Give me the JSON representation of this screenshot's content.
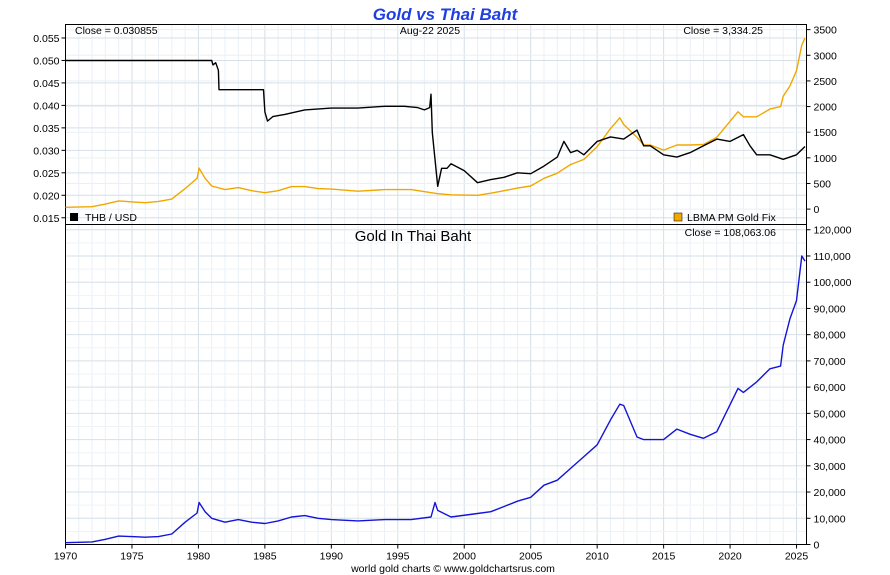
{
  "page": {
    "title": "Gold vs Thai Baht",
    "footer": "world gold charts © www.goldchartsrus.com"
  },
  "chart_data": [
    {
      "type": "line",
      "panel": "top",
      "title": "Gold vs Thai Baht",
      "date_label": "Aug-22  2025",
      "left_close": "Close = 0.030855",
      "right_close": "Close = 3,334.25",
      "x_ticks": [
        "1970",
        "1975",
        "1980",
        "1985",
        "1990",
        "1995",
        "2000",
        "2005",
        "2010",
        "2015",
        "2020",
        "2025"
      ],
      "xlim": [
        1970,
        2025.75
      ],
      "y_left": {
        "ylim": [
          0.0135,
          0.058
        ],
        "ticks": [
          "0.015",
          "0.020",
          "0.025",
          "0.030",
          "0.035",
          "0.040",
          "0.045",
          "0.050",
          "0.055"
        ]
      },
      "y_right": {
        "ylim": [
          -300,
          3600
        ],
        "ticks": [
          "0",
          "500",
          "1000",
          "1500",
          "2000",
          "2500",
          "3000",
          "3500"
        ]
      },
      "grid": true,
      "legend": [
        {
          "label": "THB / USD",
          "color": "#000000",
          "placement": "bottom-left"
        },
        {
          "label": "LBMA PM Gold Fix",
          "color": "#f0a800",
          "placement": "bottom-right"
        }
      ],
      "series": [
        {
          "name": "THB / USD",
          "axis": "left",
          "color": "#000000",
          "x": [
            1970,
            1981.0,
            1981.1,
            1981.3,
            1981.5,
            1981.55,
            1984.9,
            1985.0,
            1985.2,
            1985.6,
            1986.5,
            1988,
            1990,
            1992,
            1994,
            1995.5,
            1996.5,
            1997.0,
            1997.4,
            1997.5,
            1997.6,
            1997.8,
            1998.0,
            1998.3,
            1998.7,
            1999,
            2000,
            2001,
            2002,
            2003,
            2004,
            2005,
            2006,
            2007,
            2007.5,
            2008,
            2008.5,
            2009,
            2010,
            2011,
            2012,
            2013,
            2013.5,
            2014,
            2015,
            2016,
            2017,
            2018,
            2019,
            2020,
            2021,
            2021.5,
            2022,
            2023,
            2024,
            2025,
            2025.64
          ],
          "values": [
            0.05,
            0.05,
            0.049,
            0.0495,
            0.0478,
            0.0435,
            0.0435,
            0.0385,
            0.0365,
            0.0375,
            0.038,
            0.039,
            0.0394,
            0.0394,
            0.0398,
            0.0398,
            0.0395,
            0.039,
            0.0395,
            0.0425,
            0.034,
            0.028,
            0.022,
            0.026,
            0.026,
            0.027,
            0.0255,
            0.0228,
            0.0235,
            0.024,
            0.025,
            0.0248,
            0.0265,
            0.0285,
            0.032,
            0.0295,
            0.03,
            0.029,
            0.032,
            0.033,
            0.0325,
            0.0345,
            0.031,
            0.031,
            0.029,
            0.0285,
            0.0295,
            0.031,
            0.0325,
            0.032,
            0.0335,
            0.031,
            0.029,
            0.029,
            0.028,
            0.029,
            0.030855
          ]
        },
        {
          "name": "LBMA PM Gold Fix",
          "axis": "right",
          "color": "#f0a800",
          "x": [
            1970,
            1972,
            1973,
            1974,
            1975,
            1976,
            1977,
            1978,
            1979,
            1979.9,
            1980.05,
            1980.5,
            1981,
            1982,
            1983,
            1984,
            1985,
            1986,
            1987,
            1988,
            1989,
            1990,
            1992,
            1994,
            1996,
            1998,
            1999,
            2001,
            2002,
            2003,
            2004,
            2005,
            2006,
            2007,
            2008,
            2009,
            2010,
            2011,
            2011.7,
            2012,
            2013,
            2013.5,
            2014,
            2015,
            2016,
            2017,
            2018,
            2019,
            2020.6,
            2021,
            2022,
            2023,
            2023.8,
            2024,
            2024.5,
            2025,
            2025.4,
            2025.64
          ],
          "values": [
            35,
            48,
            97,
            160,
            140,
            125,
            150,
            195,
            400,
            600,
            800,
            600,
            450,
            380,
            420,
            360,
            320,
            360,
            440,
            440,
            400,
            390,
            350,
            380,
            380,
            300,
            280,
            270,
            310,
            360,
            410,
            450,
            600,
            700,
            870,
            970,
            1220,
            1570,
            1780,
            1650,
            1400,
            1250,
            1250,
            1150,
            1250,
            1250,
            1260,
            1400,
            1900,
            1800,
            1800,
            1950,
            2000,
            2200,
            2400,
            2700,
            3200,
            3334.25
          ]
        }
      ]
    },
    {
      "type": "line",
      "panel": "bottom",
      "title": "Gold In Thai Baht",
      "right_close": "Close = 108,063.06",
      "x_ticks": [
        "1970",
        "1975",
        "1980",
        "1985",
        "1990",
        "1995",
        "2000",
        "2005",
        "2010",
        "2015",
        "2020",
        "2025"
      ],
      "xlim": [
        1970,
        2025.75
      ],
      "y_right": {
        "ylim": [
          0,
          122000
        ],
        "ticks": [
          "0",
          "10,000",
          "20,000",
          "30,000",
          "40,000",
          "50,000",
          "60,000",
          "70,000",
          "80,000",
          "90,000",
          "100,000",
          "110,000",
          "120,000"
        ]
      },
      "grid": true,
      "series": [
        {
          "name": "Gold In Thai Baht",
          "axis": "right",
          "color": "#1414d8",
          "x": [
            1970,
            1972,
            1973,
            1974,
            1975,
            1976,
            1977,
            1978,
            1979,
            1979.9,
            1980.05,
            1980.5,
            1981,
            1982,
            1983,
            1984,
            1985,
            1986,
            1987,
            1988,
            1989,
            1990,
            1992,
            1994,
            1996,
            1997.5,
            1997.8,
            1998,
            1999,
            2001,
            2002,
            2003,
            2004,
            2005,
            2006,
            2007,
            2008,
            2009,
            2010,
            2011,
            2011.7,
            2012,
            2013,
            2013.5,
            2014,
            2015,
            2016,
            2017,
            2018,
            2019,
            2020.6,
            2021,
            2022,
            2023,
            2023.8,
            2024,
            2024.5,
            2025,
            2025.4,
            2025.64
          ],
          "values": [
            700,
            1000,
            2000,
            3200,
            3000,
            2800,
            3000,
            4000,
            8500,
            12000,
            16000,
            12500,
            10000,
            8500,
            9500,
            8500,
            8000,
            9000,
            10500,
            11000,
            10000,
            9500,
            9000,
            9500,
            9500,
            10500,
            16000,
            13000,
            10500,
            11800,
            12500,
            14500,
            16500,
            18000,
            22600,
            24500,
            29000,
            33500,
            38000,
            47500,
            53500,
            53000,
            41000,
            40000,
            40000,
            40000,
            44000,
            42000,
            40500,
            43000,
            59500,
            58000,
            62000,
            67000,
            68000,
            76000,
            86000,
            93000,
            110000,
            108063.06
          ]
        }
      ]
    }
  ]
}
